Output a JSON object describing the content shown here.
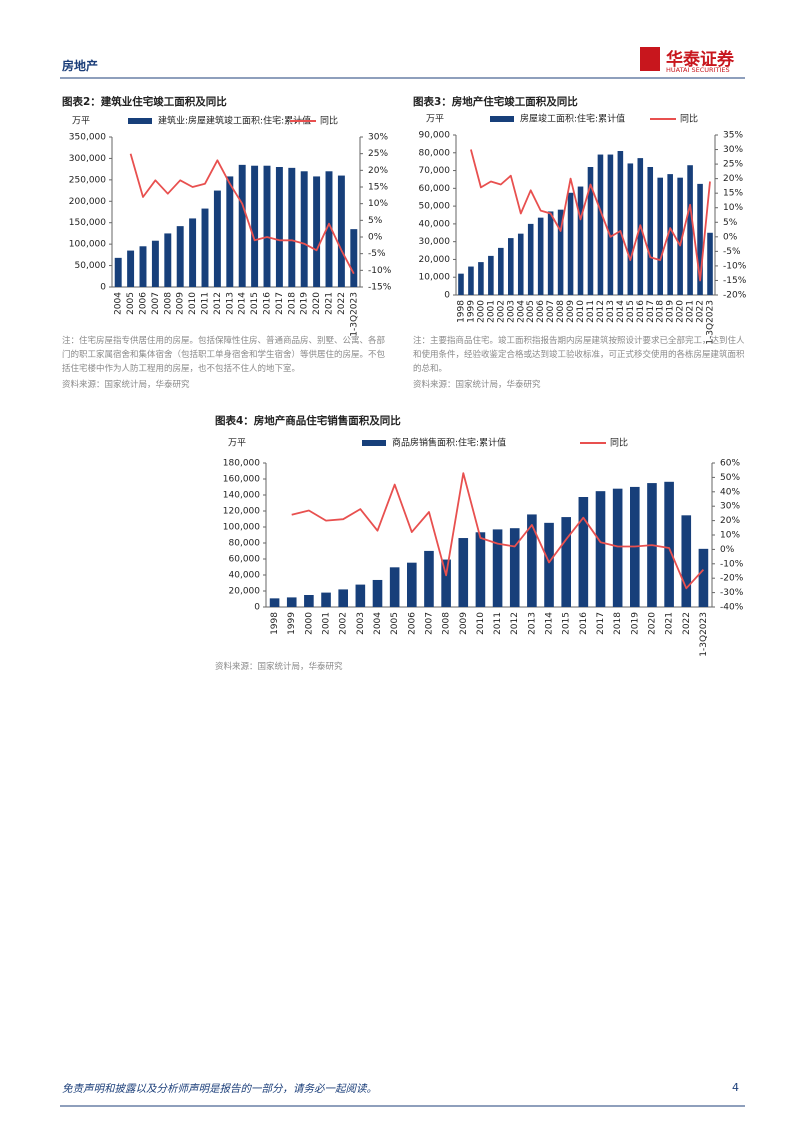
{
  "header": {
    "section": "房地产",
    "brand": "华泰证券",
    "brand_en": "HUATAI SECURITIES"
  },
  "chart_data": [
    {
      "type": "combo",
      "title": "图表2：建筑业住宅竣工面积及同比",
      "unit_label": "万平",
      "categories": [
        "2004",
        "2005",
        "2006",
        "2007",
        "2008",
        "2009",
        "2010",
        "2011",
        "2012",
        "2013",
        "2014",
        "2015",
        "2016",
        "2017",
        "2018",
        "2019",
        "2020",
        "2021",
        "2022",
        "1-3Q2023"
      ],
      "series": [
        {
          "name": "建筑业:房屋建筑竣工面积:住宅:累计值",
          "type": "bar",
          "color": "#173f7a",
          "values": [
            68000,
            85000,
            95000,
            108000,
            125000,
            142000,
            160000,
            183000,
            225000,
            258000,
            285000,
            283000,
            283000,
            280000,
            278000,
            270000,
            258000,
            270000,
            260000,
            135000
          ]
        },
        {
          "name": "同比",
          "type": "line",
          "axis": "y2",
          "color": "#e8504f",
          "values": [
            null,
            25,
            12,
            17,
            13,
            17,
            15,
            16,
            23,
            16,
            10,
            -1,
            0,
            -1,
            -1,
            -2,
            -4,
            4,
            -4,
            -11
          ]
        }
      ],
      "ylim": [
        0,
        350000
      ],
      "yticks": [
        0,
        {
          "value": 50000,
          "label": "50,000"
        },
        {
          "value": 100000,
          "label": "100,000"
        },
        {
          "value": 150000,
          "label": "150,000"
        },
        {
          "value": 200000,
          "label": "200,000"
        },
        {
          "value": 250000,
          "label": "250,000"
        },
        {
          "value": 300000,
          "label": "300,000"
        },
        {
          "value": 350000,
          "label": "350,000"
        }
      ],
      "y2lim": [
        -15,
        30
      ],
      "y2ticks": [
        {
          "value": -15,
          "label": "-15%"
        },
        {
          "value": -10,
          "label": "-10%"
        },
        {
          "value": -5,
          "label": "-5%"
        },
        {
          "value": 0,
          "label": "0%"
        },
        {
          "value": 5,
          "label": "5%"
        },
        {
          "value": 10,
          "label": "10%"
        },
        {
          "value": 15,
          "label": "15%"
        },
        {
          "value": 20,
          "label": "20%"
        },
        {
          "value": 25,
          "label": "25%"
        },
        {
          "value": 30,
          "label": "30%"
        }
      ]
    },
    {
      "type": "combo",
      "title": "图表3：房地产住宅竣工面积及同比",
      "unit_label": "万平",
      "categories": [
        "1998",
        "1999",
        "2000",
        "2001",
        "2002",
        "2003",
        "2004",
        "2005",
        "2006",
        "2007",
        "2008",
        "2009",
        "2010",
        "2011",
        "2012",
        "2013",
        "2014",
        "2015",
        "2016",
        "2017",
        "2018",
        "2019",
        "2020",
        "2021",
        "2022",
        "1-3Q2023"
      ],
      "series": [
        {
          "name": "房屋竣工面积:住宅:累计值",
          "type": "bar",
          "color": "#173f7a",
          "values": [
            12000,
            16000,
            18500,
            22000,
            26500,
            32000,
            34500,
            40000,
            43500,
            47000,
            48000,
            57500,
            61000,
            72000,
            79000,
            79000,
            81000,
            74000,
            77000,
            72000,
            66000,
            68000,
            66000,
            73000,
            62500,
            35000
          ]
        },
        {
          "name": "同比",
          "type": "line",
          "axis": "y2",
          "color": "#e8504f",
          "values": [
            null,
            30,
            17,
            19,
            18,
            21,
            8,
            16,
            9,
            8,
            2,
            20,
            6,
            18,
            9,
            0,
            2,
            -8,
            4,
            -7,
            -8,
            3,
            -3,
            11,
            -15,
            19
          ]
        }
      ],
      "ylim": [
        0,
        90000
      ],
      "yticks": [
        0,
        {
          "value": 10000,
          "label": "10,000"
        },
        {
          "value": 20000,
          "label": "20,000"
        },
        {
          "value": 30000,
          "label": "30,000"
        },
        {
          "value": 40000,
          "label": "40,000"
        },
        {
          "value": 50000,
          "label": "50,000"
        },
        {
          "value": 60000,
          "label": "60,000"
        },
        {
          "value": 70000,
          "label": "70,000"
        },
        {
          "value": 80000,
          "label": "80,000"
        },
        {
          "value": 90000,
          "label": "90,000"
        }
      ],
      "y2lim": [
        -20,
        35
      ],
      "y2ticks": [
        {
          "value": -20,
          "label": "-20%"
        },
        {
          "value": -15,
          "label": "-15%"
        },
        {
          "value": -10,
          "label": "-10%"
        },
        {
          "value": -5,
          "label": "-5%"
        },
        {
          "value": 0,
          "label": "0%"
        },
        {
          "value": 5,
          "label": "5%"
        },
        {
          "value": 10,
          "label": "10%"
        },
        {
          "value": 15,
          "label": "15%"
        },
        {
          "value": 20,
          "label": "20%"
        },
        {
          "value": 25,
          "label": "25%"
        },
        {
          "value": 30,
          "label": "30%"
        },
        {
          "value": 35,
          "label": "35%"
        }
      ]
    },
    {
      "type": "combo",
      "title": "图表4：房地产商品住宅销售面积及同比",
      "unit_label": "万平",
      "categories": [
        "1998",
        "1999",
        "2000",
        "2001",
        "2002",
        "2003",
        "2004",
        "2005",
        "2006",
        "2007",
        "2008",
        "2009",
        "2010",
        "2011",
        "2012",
        "2013",
        "2014",
        "2015",
        "2016",
        "2017",
        "2018",
        "2019",
        "2020",
        "2021",
        "2022",
        "1-3Q2023"
      ],
      "series": [
        {
          "name": "商品房销售面积:住宅:累计值",
          "type": "bar",
          "color": "#173f7a",
          "values": [
            10800,
            12000,
            15000,
            18000,
            22000,
            28000,
            33800,
            49600,
            55400,
            70100,
            59300,
            86200,
            93400,
            97000,
            98500,
            115700,
            105200,
            112400,
            137500,
            144800,
            147900,
            150100,
            154900,
            156500,
            114600,
            72700
          ]
        },
        {
          "name": "同比",
          "type": "line",
          "axis": "y2",
          "color": "#e8504f",
          "values": [
            null,
            24,
            27,
            20,
            21,
            28,
            13,
            45,
            12,
            26,
            -18,
            53,
            8,
            4,
            2,
            17,
            -9,
            7,
            22,
            5,
            2,
            2,
            3,
            1,
            -27,
            -14
          ]
        }
      ],
      "ylim": [
        0,
        180000
      ],
      "yticks": [
        0,
        {
          "value": 20000,
          "label": "20,000"
        },
        {
          "value": 40000,
          "label": "40,000"
        },
        {
          "value": 60000,
          "label": "60,000"
        },
        {
          "value": 80000,
          "label": "80,000"
        },
        {
          "value": 100000,
          "label": "100,000"
        },
        {
          "value": 120000,
          "label": "120,000"
        },
        {
          "value": 140000,
          "label": "140,000"
        },
        {
          "value": 160000,
          "label": "160,000"
        },
        {
          "value": 180000,
          "label": "180,000"
        }
      ],
      "y2lim": [
        -40,
        60
      ],
      "y2ticks": [
        {
          "value": -40,
          "label": "-40%"
        },
        {
          "value": -30,
          "label": "-30%"
        },
        {
          "value": -20,
          "label": "-20%"
        },
        {
          "value": -10,
          "label": "-10%"
        },
        {
          "value": 0,
          "label": "0%"
        },
        {
          "value": 10,
          "label": "10%"
        },
        {
          "value": 20,
          "label": "20%"
        },
        {
          "value": 30,
          "label": "30%"
        },
        {
          "value": 40,
          "label": "40%"
        },
        {
          "value": 50,
          "label": "50%"
        },
        {
          "value": 60,
          "label": "60%"
        }
      ]
    }
  ],
  "notes": {
    "left": "注：住宅房屋指专供居住用的房屋。包括保障性住房、普通商品房、别墅、公寓、各部门的职工家属宿舍和集体宿舍（包括职工单身宿舍和学生宿舍）等供居住的房屋。不包括住宅楼中作为人防工程用的房屋，也不包括不住人的地下室。",
    "left_source": "资料来源：国家统计局，华泰研究",
    "right": "注：主要指商品住宅。竣工面积指报告期内房屋建筑按照设计要求已全部完工，达到住人和使用条件，经验收鉴定合格或达到竣工验收标准，可正式移交使用的各栋房屋建筑面积的总和。",
    "right_source": "资料来源：国家统计局，华泰研究",
    "fig4_source": "资料来源：国家统计局，华泰研究"
  },
  "footer": {
    "text": "免责声明和披露以及分析师声明是报告的一部分，请务必一起阅读。",
    "page": "4"
  }
}
